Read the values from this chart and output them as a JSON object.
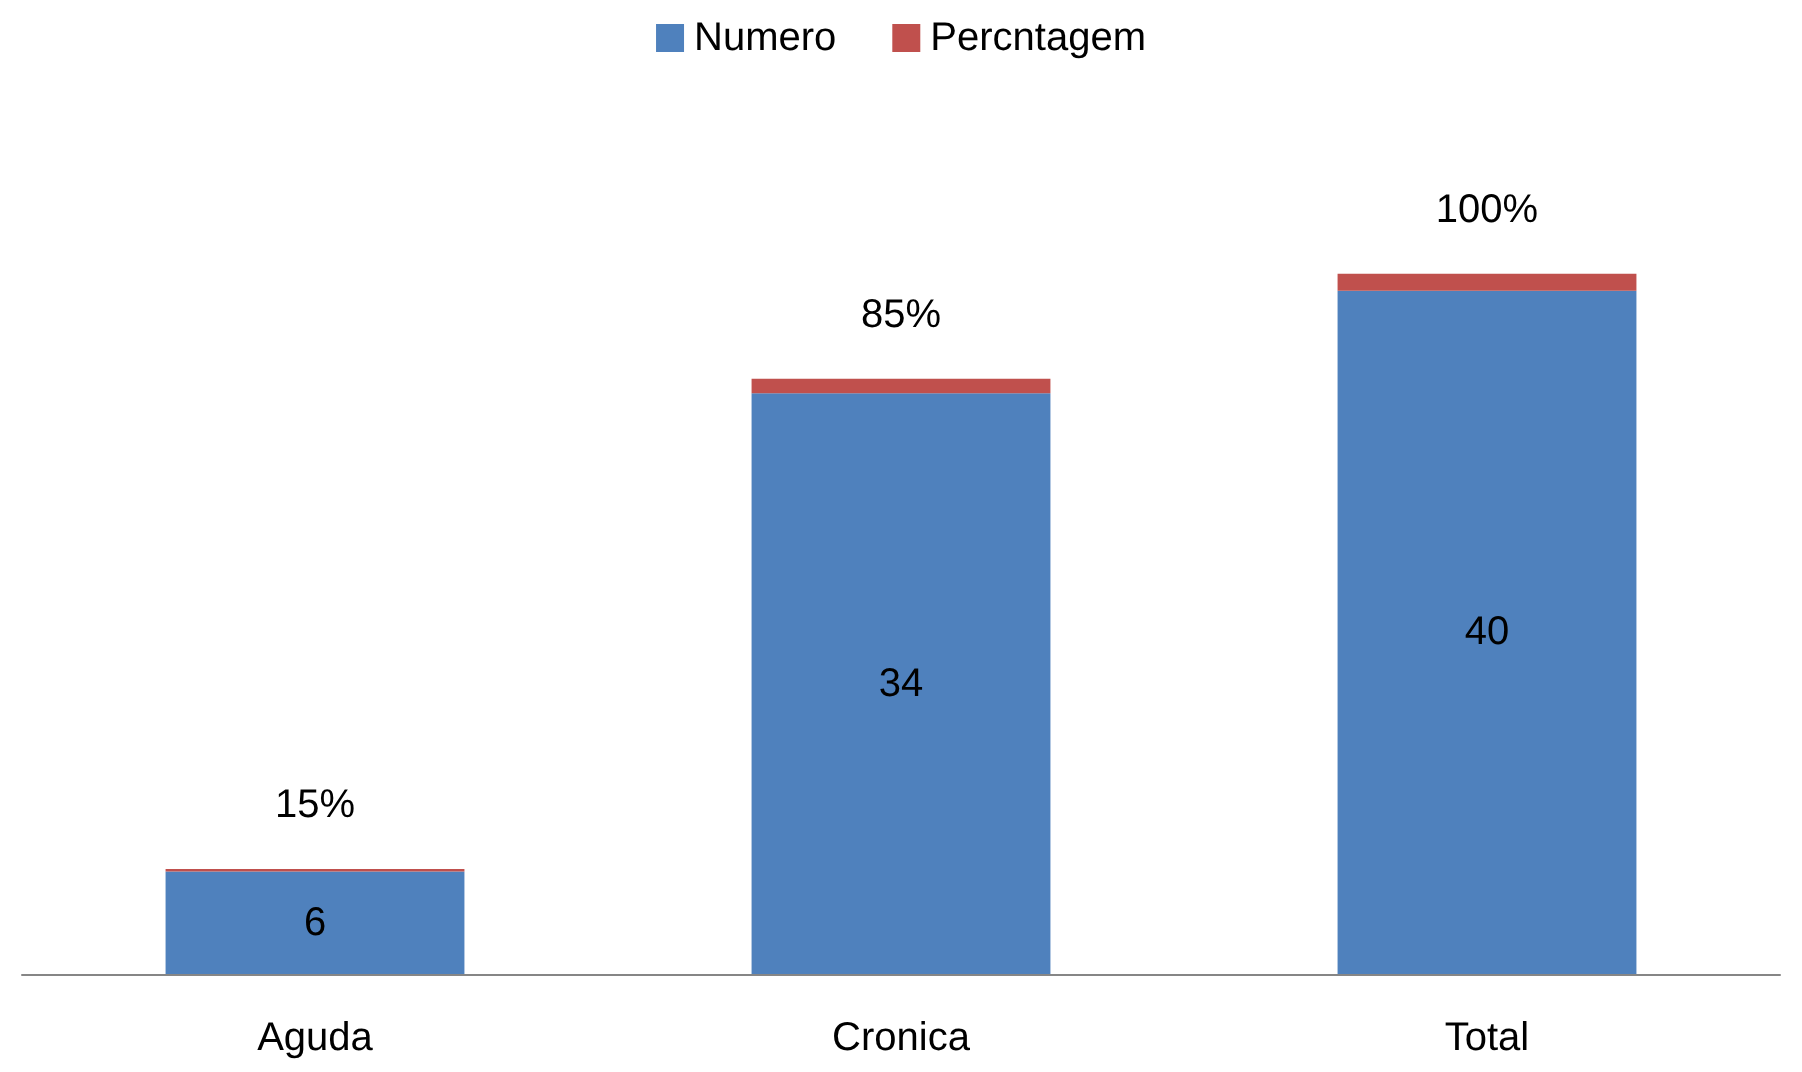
{
  "chart_data": {
    "type": "bar",
    "stacked": true,
    "categories": [
      "Aguda",
      "Cronica",
      "Total"
    ],
    "series": [
      {
        "name": "Numero",
        "color": "#4f81bd",
        "values": [
          6,
          34,
          40
        ],
        "value_labels": [
          "6",
          "34",
          "40"
        ]
      },
      {
        "name": "Percntagem",
        "color": "#c0504d",
        "values": [
          0.15,
          0.85,
          1
        ],
        "value_labels": [
          "15%",
          "85%",
          "100%"
        ]
      }
    ],
    "legend": "top"
  }
}
